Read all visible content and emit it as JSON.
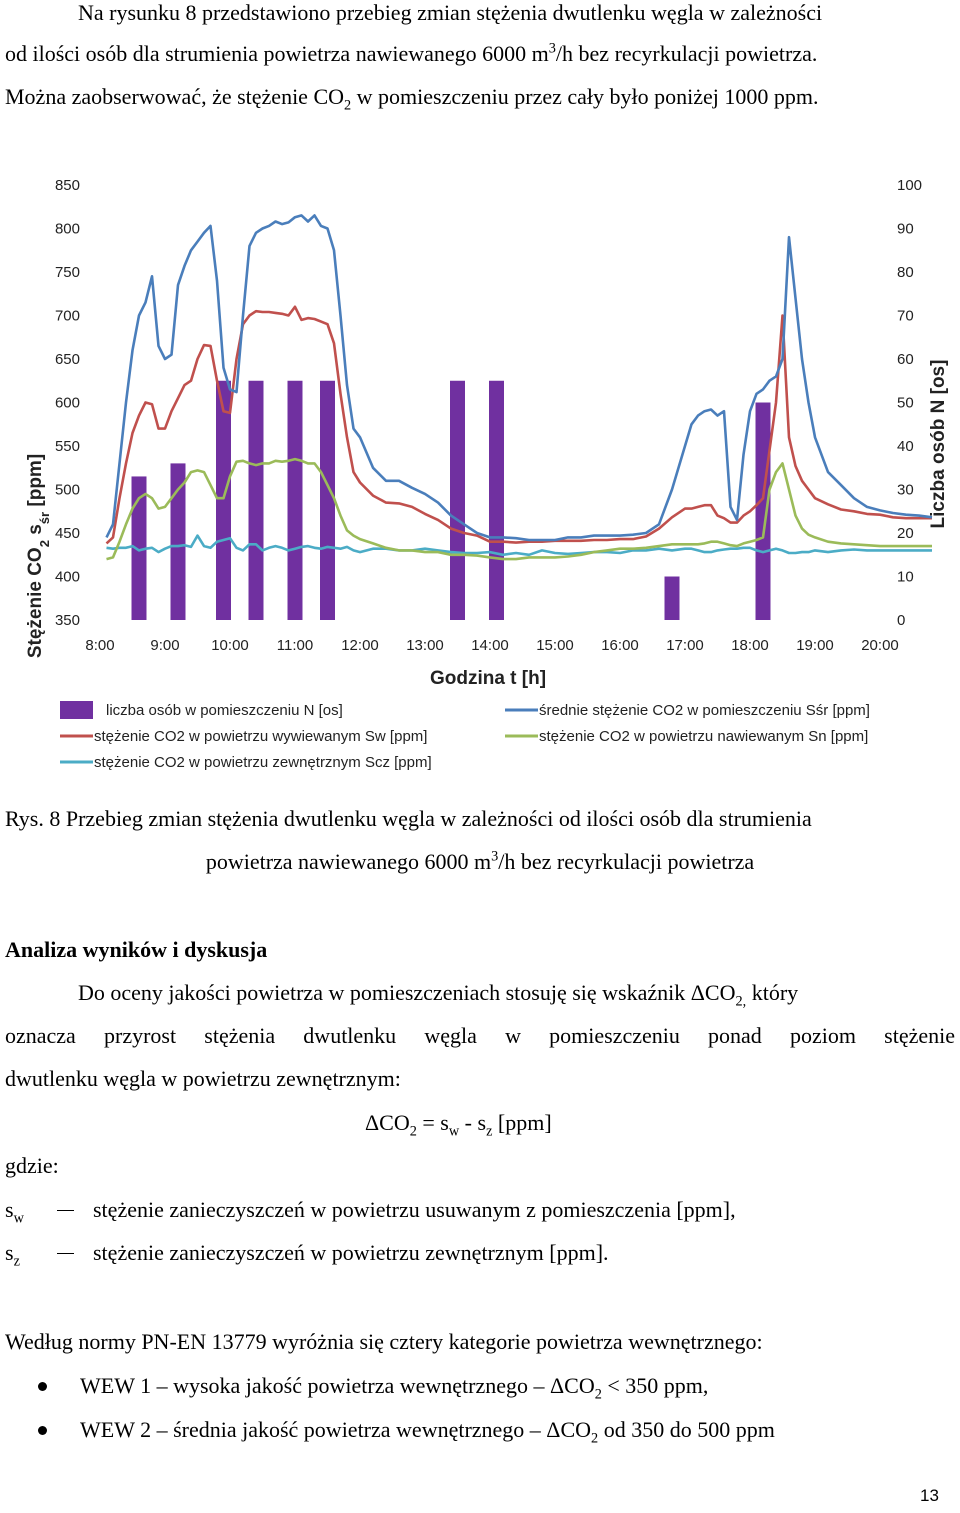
{
  "intro": {
    "line1": "Na rysunku 8 przedstawiono przebieg zmian stężenia dwutlenku węgla w zależności",
    "line2_a": "od ilości osób dla strumienia powietrza nawiewanego 6000 m",
    "line2_sup": "3",
    "line2_b": "/h bez recyrkulacji powietrza.",
    "line3_a": "Można zaobserwować, że stężenie CO",
    "line3_sub": "2",
    "line3_b": " w pomieszczeniu przez cały było poniżej 1000 ppm."
  },
  "chart_data": {
    "type": "line+bar",
    "xlabel": "Godzina t [h]",
    "ylabel_main": "Stężenie CO",
    "ylabel_sub": "2",
    "ylabel_s": " s",
    "ylabel_ssub": "śr",
    "ylabel_unit": " [ppm]",
    "y2label": "Liczba osób N [os]",
    "x_ticks": [
      "8:00",
      "9:00",
      "10:00",
      "11:00",
      "12:00",
      "13:00",
      "14:00",
      "15:00",
      "16:00",
      "17:00",
      "18:00",
      "19:00",
      "20:00"
    ],
    "y_ticks": [
      "850",
      "800",
      "750",
      "700",
      "650",
      "600",
      "550",
      "500",
      "450",
      "400",
      "350"
    ],
    "y2_ticks": [
      "100",
      "90",
      "80",
      "70",
      "60",
      "50",
      "40",
      "30",
      "20",
      "10",
      "0"
    ],
    "ylim": [
      350,
      850
    ],
    "y2lim": [
      0,
      100
    ],
    "xlim_hours": [
      8,
      20
    ],
    "bars": {
      "name": "liczba osób w pomieszczeniu N [os]",
      "color": "#7030a0",
      "points": [
        {
          "t": 8.6,
          "n": 33
        },
        {
          "t": 9.2,
          "n": 36
        },
        {
          "t": 9.9,
          "n": 55
        },
        {
          "t": 10.4,
          "n": 55
        },
        {
          "t": 11.0,
          "n": 55
        },
        {
          "t": 11.5,
          "n": 55
        },
        {
          "t": 13.5,
          "n": 55
        },
        {
          "t": 14.1,
          "n": 55
        },
        {
          "t": 16.8,
          "n": 10
        },
        {
          "t": 18.2,
          "n": 50
        }
      ]
    },
    "series": [
      {
        "name": "średnie stężenie CO2 w pomieszczeniu Sśr [ppm]",
        "color": "#4a7ebb",
        "x": [
          8.1,
          8.2,
          8.3,
          8.4,
          8.5,
          8.6,
          8.7,
          8.8,
          8.9,
          9.0,
          9.1,
          9.2,
          9.3,
          9.4,
          9.5,
          9.6,
          9.7,
          9.8,
          9.9,
          10.0,
          10.1,
          10.2,
          10.3,
          10.4,
          10.5,
          10.6,
          10.7,
          10.8,
          10.9,
          11.0,
          11.1,
          11.2,
          11.3,
          11.4,
          11.5,
          11.6,
          11.7,
          11.8,
          11.9,
          12.0,
          12.2,
          12.4,
          12.6,
          12.8,
          13.0,
          13.2,
          13.4,
          13.6,
          13.8,
          14.0,
          14.2,
          14.4,
          14.6,
          14.8,
          15.0,
          15.2,
          15.4,
          15.6,
          15.8,
          16.0,
          16.2,
          16.4,
          16.6,
          16.8,
          17.0,
          17.1,
          17.2,
          17.3,
          17.4,
          17.5,
          17.6,
          17.7,
          17.8,
          17.9,
          18.0,
          18.1,
          18.2,
          18.3,
          18.4,
          18.5,
          18.6,
          18.7,
          18.8,
          18.9,
          19.0,
          19.2,
          19.4,
          19.6,
          19.8,
          20.0,
          20.2,
          20.4,
          20.6,
          20.8
        ],
        "values": [
          445,
          460,
          530,
          600,
          660,
          700,
          715,
          745,
          665,
          650,
          655,
          735,
          757,
          775,
          785,
          795,
          803,
          740,
          640,
          615,
          612,
          700,
          780,
          795,
          800,
          803,
          808,
          805,
          807,
          813,
          815,
          808,
          815,
          803,
          800,
          775,
          700,
          620,
          570,
          560,
          525,
          510,
          510,
          502,
          495,
          485,
          470,
          460,
          450,
          445,
          445,
          444,
          442,
          442,
          442,
          445,
          445,
          447,
          447,
          447,
          448,
          450,
          460,
          500,
          550,
          575,
          585,
          590,
          592,
          585,
          590,
          480,
          465,
          540,
          590,
          610,
          615,
          625,
          630,
          650,
          790,
          720,
          650,
          600,
          560,
          520,
          505,
          490,
          480,
          476,
          473,
          471,
          470,
          468
        ]
      },
      {
        "name": "stężenie CO2 w powietrzu wywiewanym Sw [ppm]",
        "color": "#c0504d",
        "x": [
          8.1,
          8.2,
          8.3,
          8.4,
          8.5,
          8.6,
          8.7,
          8.8,
          8.9,
          9.0,
          9.1,
          9.2,
          9.3,
          9.4,
          9.5,
          9.6,
          9.7,
          9.8,
          9.9,
          10.0,
          10.1,
          10.2,
          10.3,
          10.4,
          10.5,
          10.6,
          10.7,
          10.8,
          10.9,
          11.0,
          11.1,
          11.2,
          11.3,
          11.4,
          11.5,
          11.6,
          11.7,
          11.8,
          11.9,
          12.0,
          12.2,
          12.4,
          12.6,
          12.8,
          13.0,
          13.2,
          13.4,
          13.6,
          13.8,
          14.0,
          14.2,
          14.4,
          14.6,
          14.8,
          15.0,
          15.2,
          15.4,
          15.6,
          15.8,
          16.0,
          16.2,
          16.4,
          16.6,
          16.8,
          17.0,
          17.1,
          17.2,
          17.3,
          17.4,
          17.5,
          17.6,
          17.7,
          17.8,
          17.9,
          18.0,
          18.1,
          18.2,
          18.3,
          18.4,
          18.5,
          18.6,
          18.7,
          18.8,
          18.9,
          19.0,
          19.2,
          19.4,
          19.6,
          19.8,
          20.0,
          20.2,
          20.4,
          20.6,
          20.8
        ],
        "values": [
          438,
          445,
          490,
          530,
          565,
          585,
          600,
          598,
          570,
          570,
          590,
          605,
          620,
          625,
          650,
          666,
          665,
          625,
          590,
          588,
          650,
          690,
          700,
          705,
          704,
          704,
          703,
          702,
          700,
          710,
          695,
          697,
          696,
          693,
          690,
          668,
          610,
          560,
          520,
          508,
          493,
          485,
          484,
          480,
          472,
          465,
          455,
          450,
          447,
          440,
          440,
          439,
          440,
          440,
          441,
          441,
          441,
          442,
          442,
          443,
          443,
          446,
          455,
          468,
          478,
          478,
          480,
          482,
          482,
          470,
          467,
          462,
          462,
          470,
          475,
          482,
          490,
          545,
          600,
          700,
          560,
          527,
          510,
          500,
          490,
          483,
          477,
          475,
          472,
          471,
          468,
          467,
          467,
          467
        ],
        "sparse_note": ""
      },
      {
        "name": "stężenie CO2 w powietrzu nawiewanym Sn [ppm]",
        "color": "#9bbb59",
        "x": [
          8.1,
          8.2,
          8.3,
          8.4,
          8.5,
          8.6,
          8.7,
          8.8,
          8.9,
          9.0,
          9.1,
          9.2,
          9.3,
          9.4,
          9.5,
          9.6,
          9.7,
          9.8,
          9.9,
          10.0,
          10.1,
          10.2,
          10.3,
          10.4,
          10.5,
          10.6,
          10.7,
          10.8,
          10.9,
          11.0,
          11.1,
          11.2,
          11.3,
          11.4,
          11.5,
          11.6,
          11.7,
          11.8,
          11.9,
          12.0,
          12.2,
          12.4,
          12.6,
          12.8,
          13.0,
          13.2,
          13.4,
          13.6,
          13.8,
          14.0,
          14.2,
          14.4,
          14.6,
          14.8,
          15.0,
          15.2,
          15.4,
          15.6,
          15.8,
          16.0,
          16.2,
          16.4,
          16.6,
          16.8,
          17.0,
          17.1,
          17.2,
          17.3,
          17.4,
          17.5,
          17.6,
          17.7,
          17.8,
          17.9,
          18.0,
          18.1,
          18.2,
          18.3,
          18.4,
          18.5,
          18.6,
          18.7,
          18.8,
          18.9,
          19.0,
          19.2,
          19.4,
          19.6,
          19.8,
          20.0,
          20.2,
          20.4,
          20.6,
          20.8
        ],
        "values": [
          420,
          422,
          440,
          460,
          478,
          490,
          495,
          490,
          478,
          480,
          490,
          500,
          508,
          520,
          522,
          520,
          505,
          490,
          490,
          515,
          532,
          533,
          530,
          528,
          530,
          530,
          533,
          532,
          533,
          535,
          533,
          530,
          530,
          520,
          505,
          490,
          470,
          453,
          447,
          443,
          438,
          433,
          430,
          430,
          428,
          428,
          425,
          425,
          424,
          422,
          420,
          420,
          422,
          422,
          422,
          423,
          425,
          428,
          430,
          432,
          432,
          433,
          435,
          437,
          437,
          437,
          437,
          438,
          440,
          440,
          438,
          436,
          435,
          438,
          440,
          442,
          445,
          500,
          520,
          530,
          500,
          470,
          455,
          448,
          445,
          440,
          438,
          437,
          436,
          435,
          435,
          435,
          435,
          435
        ]
      },
      {
        "name": "stężenie CO2 w powietrzu zewnętrznym Scz [ppm]",
        "color": "#4bacc6",
        "x": [
          8.1,
          8.2,
          8.3,
          8.4,
          8.5,
          8.6,
          8.7,
          8.8,
          8.9,
          9.0,
          9.1,
          9.2,
          9.3,
          9.4,
          9.5,
          9.6,
          9.7,
          9.8,
          9.9,
          10.0,
          10.1,
          10.2,
          10.3,
          10.4,
          10.5,
          10.6,
          10.7,
          10.8,
          10.9,
          11.0,
          11.1,
          11.2,
          11.3,
          11.4,
          11.5,
          11.6,
          11.7,
          11.8,
          11.9,
          12.0,
          12.2,
          12.4,
          12.6,
          12.8,
          13.0,
          13.2,
          13.4,
          13.6,
          13.8,
          14.0,
          14.2,
          14.4,
          14.6,
          14.8,
          15.0,
          15.2,
          15.4,
          15.6,
          15.8,
          16.0,
          16.2,
          16.4,
          16.6,
          16.8,
          17.0,
          17.1,
          17.2,
          17.3,
          17.4,
          17.5,
          17.6,
          17.7,
          17.8,
          17.9,
          18.0,
          18.1,
          18.2,
          18.3,
          18.4,
          18.5,
          18.6,
          18.7,
          18.8,
          18.9,
          19.0,
          19.2,
          19.4,
          19.6,
          19.8,
          20.0,
          20.2,
          20.4,
          20.6,
          20.8
        ],
        "values": [
          433,
          432,
          433,
          433,
          435,
          430,
          432,
          433,
          428,
          432,
          435,
          435,
          436,
          434,
          447,
          435,
          433,
          440,
          442,
          444,
          433,
          430,
          437,
          437,
          430,
          433,
          435,
          433,
          430,
          432,
          434,
          435,
          433,
          432,
          434,
          433,
          432,
          434,
          430,
          428,
          432,
          432,
          430,
          430,
          432,
          430,
          428,
          427,
          427,
          428,
          425,
          427,
          425,
          430,
          427,
          426,
          427,
          428,
          428,
          427,
          430,
          430,
          432,
          430,
          432,
          432,
          430,
          428,
          428,
          430,
          431,
          432,
          432,
          433,
          433,
          430,
          428,
          430,
          432,
          430,
          427,
          427,
          428,
          428,
          430,
          428,
          430,
          431,
          430,
          430,
          430,
          430,
          430,
          430
        ]
      }
    ],
    "legend": [
      {
        "label": "liczba osób w pomieszczeniu N [os]",
        "kind": "bar",
        "color": "#7030a0"
      },
      {
        "label": "średnie stężenie CO2 w pomieszczeniu Sśr [ppm]",
        "kind": "line",
        "color": "#4a7ebb"
      },
      {
        "label": "stężenie CO2 w powietrzu wywiewanym Sw [ppm]",
        "kind": "line",
        "color": "#c0504d"
      },
      {
        "label": "stężenie CO2 w powietrzu nawiewanym Sn [ppm]",
        "kind": "line",
        "color": "#9bbb59"
      },
      {
        "label": "stężenie CO2 w powietrzu zewnętrznym Scz [ppm]",
        "kind": "line",
        "color": "#4bacc6"
      }
    ]
  },
  "caption": {
    "line1": "Rys. 8  Przebieg zmian stężenia dwutlenku węgla w zależności od ilości osób dla strumienia",
    "line2_a": "powietrza nawiewanego 6000 m",
    "line2_sup": "3",
    "line2_b": "/h bez recyrkulacji powietrza"
  },
  "section": {
    "heading": "Analiza wyników i dyskusja",
    "p1_line1_a": "Do oceny jakości powietrza w pomieszczeniach  stosuję się wskaźnik ΔCO",
    "p1_line1_sub": "2,",
    "p1_line1_b": " który",
    "p1_line2": "oznacza przyrost stężenia dwutlenku węgla w pomieszczeniu ponad poziom stężenie",
    "p1_line3": "dwutlenku węgla w powietrzu zewnętrznym:",
    "formula_a": "ΔCO",
    "formula_sub1": "2",
    "formula_b": " = s",
    "formula_sub2": "w",
    "formula_c": " - s",
    "formula_sub3": "z",
    "formula_d": "   [ppm]",
    "gdzie": "gdzie:",
    "def1_sym": "s",
    "def1_sub": "w",
    "def1_text": "stężenie zanieczyszczeń w powietrzu usuwanym z pomieszczenia [ppm],",
    "def2_sym": "s",
    "def2_sub": "z",
    "def2_text": "stężenie zanieczyszczeń w powietrzu zewnętrznym [ppm].",
    "norm_line": "Według normy PN-EN 13779 wyróżnia się cztery kategorie powietrza wewnętrznego:",
    "bullet1_a": "WEW 1 – wysoka jakość powietrza wewnętrznego – ΔCO",
    "bullet1_sub": "2",
    "bullet1_b": " < 350 ppm,",
    "bullet2_a": "WEW 2 – średnia jakość powietrza wewnętrznego – ΔCO",
    "bullet2_sub": "2",
    "bullet2_b": " od 350 do 500 ppm"
  },
  "page_number": "13"
}
